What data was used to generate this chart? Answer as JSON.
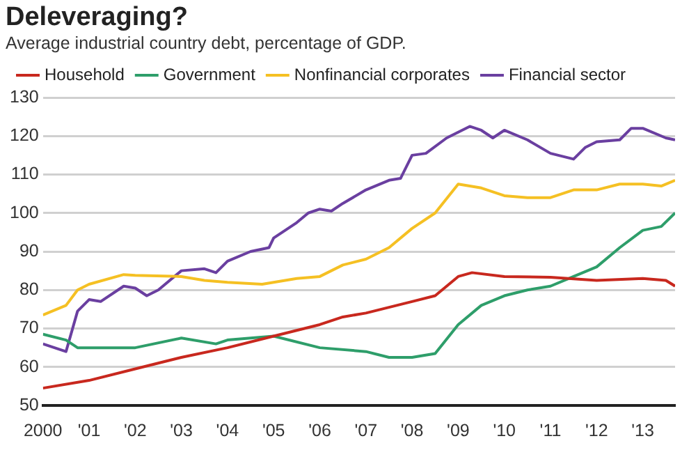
{
  "chart_data": {
    "type": "line",
    "title": "Deleveraging?",
    "subtitle": "Average industrial country debt, percentage of GDP.",
    "xlim": [
      2000,
      2013.7
    ],
    "xticks": [
      2000,
      {
        "value": 2001,
        "label": "'01"
      },
      {
        "value": 2002,
        "label": "'02"
      },
      {
        "value": 2003,
        "label": "'03"
      },
      {
        "value": 2004,
        "label": "'04"
      },
      {
        "value": 2005,
        "label": "'05"
      },
      {
        "value": 2006,
        "label": "'06"
      },
      {
        "value": 2007,
        "label": "'07"
      },
      {
        "value": 2008,
        "label": "'08"
      },
      {
        "value": 2009,
        "label": "'09"
      },
      {
        "value": 2010,
        "label": "'10"
      },
      {
        "value": 2011,
        "label": "'11"
      },
      {
        "value": 2012,
        "label": "'12"
      },
      {
        "value": 2013,
        "label": "'13"
      }
    ],
    "ylim": [
      50,
      130
    ],
    "yticks": [
      50,
      60,
      70,
      80,
      90,
      100,
      110,
      120,
      130
    ],
    "grid": "y",
    "legend": "top",
    "marker": "none",
    "line_style": "solid",
    "series": [
      {
        "name": "Household",
        "color": "#c8281e",
        "x": [
          2000,
          2001,
          2002,
          2003,
          2004,
          2005,
          2006,
          2006.5,
          2007,
          2008,
          2008.5,
          2009,
          2009.3,
          2010,
          2011,
          2012,
          2013,
          2013.5,
          2013.7
        ],
        "values": [
          54.5,
          56.5,
          59.5,
          62.5,
          65,
          68,
          71,
          73,
          74,
          77,
          78.5,
          83.5,
          84.5,
          83.5,
          83.3,
          82.5,
          83,
          82.5,
          81
        ]
      },
      {
        "name": "Government",
        "color": "#2e9e6a",
        "x": [
          2000,
          2000.5,
          2000.75,
          2001,
          2002,
          2003,
          2003.75,
          2004,
          2005,
          2006,
          2007,
          2007.5,
          2008,
          2008.5,
          2009,
          2009.5,
          2010,
          2010.5,
          2011,
          2011.5,
          2012,
          2012.5,
          2013,
          2013.4,
          2013.7
        ],
        "values": [
          68.5,
          67,
          65,
          65,
          65,
          67.5,
          66,
          67,
          68,
          65,
          64,
          62.5,
          62.5,
          63.5,
          71,
          76,
          78.5,
          80,
          81,
          83.5,
          86,
          91,
          95.5,
          96.5,
          100
        ]
      },
      {
        "name": "Nonfinancial corporates",
        "color": "#f5c023",
        "x": [
          2000,
          2000.5,
          2000.75,
          2001,
          2001.75,
          2002,
          2003,
          2003.5,
          2004,
          2004.75,
          2005,
          2005.5,
          2006,
          2006.5,
          2007,
          2007.5,
          2008,
          2008.5,
          2009,
          2009.5,
          2010,
          2010.5,
          2011,
          2011.5,
          2012,
          2012.5,
          2013,
          2013.4,
          2013.7
        ],
        "values": [
          73.5,
          76,
          80,
          81.5,
          84,
          83.8,
          83.5,
          82.5,
          82,
          81.5,
          82,
          83,
          83.5,
          86.5,
          88,
          91,
          96,
          100,
          107.5,
          106.5,
          104.5,
          104,
          104,
          106,
          106,
          107.5,
          107.5,
          107,
          108.5
        ]
      },
      {
        "name": "Financial sector",
        "color": "#6a3fa0",
        "x": [
          2000,
          2000.5,
          2000.75,
          2001,
          2001.25,
          2001.75,
          2002,
          2002.25,
          2002.5,
          2003,
          2003.5,
          2003.75,
          2004,
          2004.5,
          2004.9,
          2005,
          2005.5,
          2005.75,
          2006,
          2006.25,
          2006.5,
          2007,
          2007.5,
          2007.75,
          2008,
          2008.3,
          2008.75,
          2009,
          2009.25,
          2009.5,
          2009.75,
          2010,
          2010.5,
          2011,
          2011.5,
          2011.75,
          2012,
          2012.5,
          2012.75,
          2013,
          2013.5,
          2013.7
        ],
        "values": [
          66,
          64,
          74.5,
          77.5,
          77,
          81,
          80.5,
          78.5,
          80,
          85,
          85.5,
          84.5,
          87.5,
          90,
          91,
          93.5,
          97.5,
          100,
          101,
          100.5,
          102.5,
          106,
          108.5,
          109,
          115,
          115.5,
          119.5,
          121,
          122.5,
          121.5,
          119.5,
          121.5,
          119,
          115.5,
          114,
          117,
          118.5,
          119,
          122,
          122,
          119.5,
          119
        ]
      }
    ]
  }
}
